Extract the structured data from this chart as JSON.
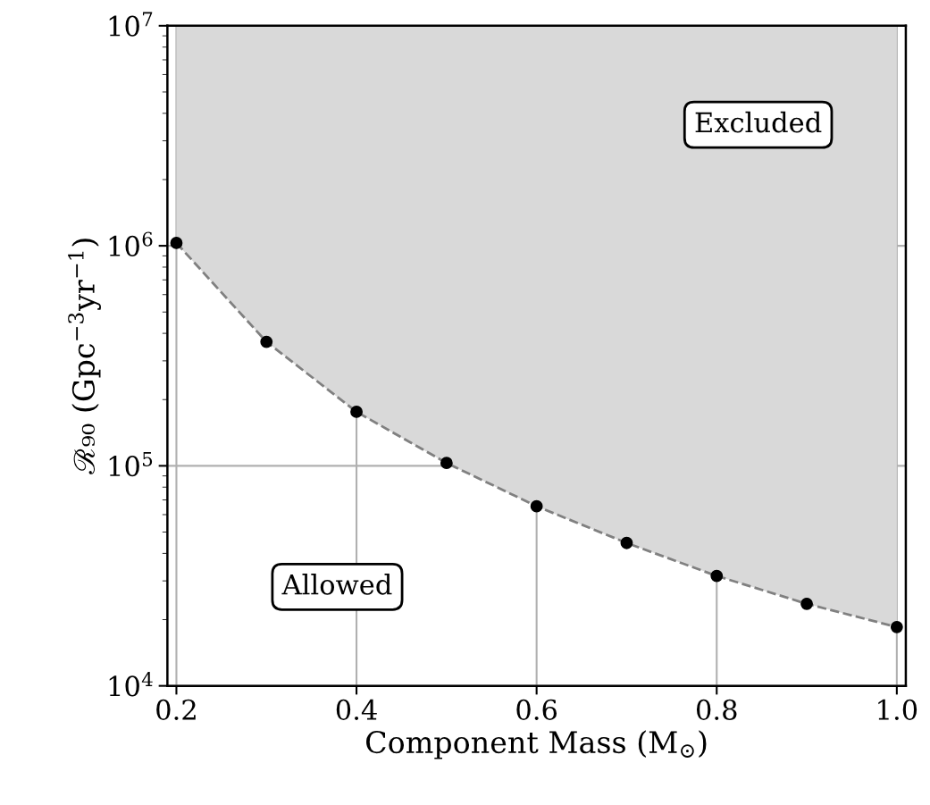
{
  "chart_data": {
    "type": "scatter",
    "xlabel": "Component Mass (M$_{⊙}$)",
    "ylabel": "ℛ₉₀ (Gpc$^{−3}$yr$^{−1}$)",
    "x": [
      0.2,
      0.3,
      0.4,
      0.5,
      0.6,
      0.7,
      0.8,
      0.9,
      1.0
    ],
    "series": [
      {
        "type": "line",
        "color": "#808080",
        "line_style": "dashed",
        "marker": "none",
        "values": [
          1030000,
          366000,
          176000,
          103000,
          65500,
          44600,
          31600,
          23600,
          18500
        ],
        "lower": [
          1030000,
          366000,
          176000,
          103000,
          65500,
          44600,
          31600,
          23600,
          18500
        ],
        "upper": [
          10000000,
          10000000,
          10000000,
          10000000,
          10000000,
          10000000,
          10000000,
          10000000,
          10000000
        ]
      },
      {
        "type": "scatter",
        "color": "#000000",
        "marker": "circle",
        "values": [
          1030000,
          366000,
          176000,
          103000,
          65500,
          44600,
          31600,
          23600,
          18500
        ]
      }
    ],
    "annotations": [
      "Excluded",
      "Allowed"
    ],
    "log": "y",
    "grid": true,
    "xlim": [
      0.19,
      1.01
    ],
    "ylim": [
      10000,
      10000000
    ],
    "xticks": [
      {
        "value": 0.2,
        "label": "0.2"
      },
      {
        "value": 0.4,
        "label": "0.4"
      },
      {
        "value": 0.6,
        "label": "0.6"
      },
      {
        "value": 0.8,
        "label": "0.8"
      },
      {
        "value": 1.0,
        "label": "1.0"
      }
    ],
    "yticks": [
      {
        "value": 10000,
        "label": "10$^{4}$"
      },
      {
        "value": 100000,
        "label": "10$^{5}$"
      },
      {
        "value": 1000000,
        "label": "10$^{6}$"
      },
      {
        "value": 10000000,
        "label": "10$^{7}$"
      }
    ]
  }
}
